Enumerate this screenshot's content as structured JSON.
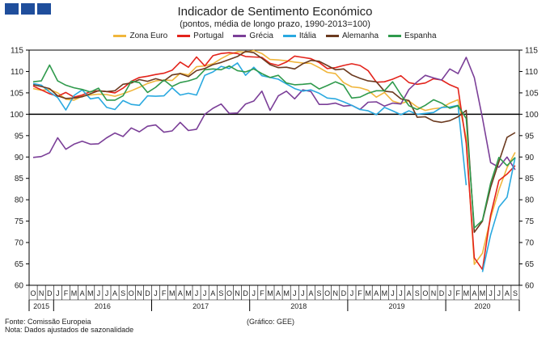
{
  "chart_data": {
    "type": "line",
    "title": "Indicador de Sentimento Económico",
    "subtitle": "(pontos, média de longo prazo, 1990-2013=100)",
    "ylim": [
      60,
      115
    ],
    "yticks": [
      60,
      65,
      70,
      75,
      80,
      85,
      90,
      95,
      100,
      105,
      110,
      115
    ],
    "reference_line": 100,
    "grid": false,
    "legend_position": "top",
    "x": [
      "2015-10",
      "2015-11",
      "2015-12",
      "2016-01",
      "2016-02",
      "2016-03",
      "2016-04",
      "2016-05",
      "2016-06",
      "2016-07",
      "2016-08",
      "2016-09",
      "2016-10",
      "2016-11",
      "2016-12",
      "2017-01",
      "2017-02",
      "2017-03",
      "2017-04",
      "2017-05",
      "2017-06",
      "2017-07",
      "2017-08",
      "2017-09",
      "2017-10",
      "2017-11",
      "2017-12",
      "2018-01",
      "2018-02",
      "2018-03",
      "2018-04",
      "2018-05",
      "2018-06",
      "2018-07",
      "2018-08",
      "2018-09",
      "2018-10",
      "2018-11",
      "2018-12",
      "2019-01",
      "2019-02",
      "2019-03",
      "2019-04",
      "2019-05",
      "2019-06",
      "2019-07",
      "2019-08",
      "2019-09",
      "2019-10",
      "2019-11",
      "2019-12",
      "2020-01",
      "2020-02",
      "2020-03",
      "2020-04",
      "2020-05",
      "2020-06",
      "2020-07",
      "2020-08",
      "2020-09"
    ],
    "month_labels": [
      "O",
      "N",
      "D",
      "J",
      "F",
      "M",
      "A",
      "M",
      "J",
      "J",
      "A",
      "S",
      "O",
      "N",
      "D",
      "J",
      "F",
      "M",
      "A",
      "M",
      "J",
      "J",
      "A",
      "S",
      "O",
      "N",
      "D",
      "J",
      "F",
      "M",
      "A",
      "M",
      "J",
      "J",
      "A",
      "S",
      "O",
      "N",
      "D",
      "J",
      "F",
      "M",
      "A",
      "M",
      "J",
      "J",
      "A",
      "S",
      "O",
      "N",
      "D",
      "J",
      "F",
      "M",
      "A",
      "M",
      "J",
      "J",
      "A",
      "S"
    ],
    "year_labels": [
      {
        "label": "2015",
        "from": 0,
        "to": 2
      },
      {
        "label": "2016",
        "from": 3,
        "to": 14
      },
      {
        "label": "2017",
        "from": 15,
        "to": 26
      },
      {
        "label": "2018",
        "from": 27,
        "to": 38
      },
      {
        "label": "2019",
        "from": 39,
        "to": 50
      },
      {
        "label": "2020",
        "from": 51,
        "to": 59
      }
    ],
    "series": [
      {
        "name": "Zona Euro",
        "color": "#f0b63c",
        "values": [
          106.0,
          105.6,
          105.8,
          105.0,
          103.5,
          103.3,
          104.2,
          104.5,
          104.7,
          104.6,
          104.2,
          104.8,
          105.5,
          106.3,
          107.2,
          107.8,
          108.0,
          107.9,
          109.6,
          109.2,
          111.1,
          111.3,
          111.8,
          113.0,
          114.0,
          114.6,
          114.5,
          114.9,
          114.2,
          112.8,
          112.7,
          112.5,
          112.2,
          112.0,
          111.9,
          110.9,
          109.8,
          109.5,
          107.4,
          106.4,
          106.2,
          105.6,
          104.0,
          105.1,
          103.1,
          102.5,
          103.1,
          101.7,
          100.9,
          101.3,
          101.5,
          102.6,
          103.4,
          94.5,
          64.9,
          67.5,
          75.7,
          82.3,
          87.5,
          91.1
        ]
      },
      {
        "name": "Portugal",
        "color": "#e3231b",
        "values": [
          106.6,
          105.7,
          104.8,
          104.2,
          105.1,
          104.0,
          104.5,
          105.3,
          105.5,
          105.3,
          105.0,
          106.1,
          107.7,
          108.6,
          108.9,
          109.3,
          109.6,
          110.3,
          112.2,
          111.0,
          113.4,
          111.3,
          113.7,
          114.2,
          114.4,
          114.2,
          113.5,
          113.4,
          113.3,
          111.9,
          111.4,
          112.2,
          113.6,
          113.3,
          113.0,
          112.1,
          110.7,
          110.9,
          111.4,
          111.8,
          111.4,
          110.2,
          107.5,
          107.6,
          108.2,
          109.0,
          107.4,
          107.0,
          107.3,
          108.3,
          108.0,
          106.9,
          106.1,
          93.2,
          66.4,
          63.7,
          76.4,
          84.5,
          86.0,
          88.0
        ]
      },
      {
        "name": "Grécia",
        "color": "#7b3f98",
        "values": [
          89.9,
          90.1,
          91.0,
          94.5,
          91.8,
          93.0,
          93.7,
          93.0,
          93.1,
          94.5,
          95.6,
          94.8,
          96.8,
          95.9,
          97.2,
          97.5,
          95.8,
          96.1,
          98.1,
          96.2,
          96.5,
          100.0,
          101.4,
          102.4,
          100.2,
          100.3,
          102.4,
          103.1,
          105.4,
          100.9,
          104.3,
          105.4,
          103.6,
          105.7,
          105.3,
          102.3,
          102.3,
          102.6,
          101.9,
          102.1,
          101.1,
          102.8,
          102.9,
          101.9,
          102.6,
          102.4,
          105.8,
          107.6,
          109.1,
          108.5,
          108.0,
          110.6,
          109.5,
          113.3,
          108.6,
          99.1,
          88.7,
          87.6,
          90.0,
          87.0
        ]
      },
      {
        "name": "Itália",
        "color": "#2aa9e0",
        "values": [
          107.2,
          106.8,
          105.2,
          103.9,
          101.0,
          104.4,
          105.7,
          103.6,
          103.9,
          101.6,
          101.1,
          103.2,
          102.3,
          102.1,
          104.3,
          104.2,
          104.3,
          106.2,
          104.5,
          104.9,
          104.5,
          109.1,
          109.9,
          111.2,
          110.7,
          112.0,
          109.1,
          111.0,
          109.0,
          108.6,
          108.2,
          107.1,
          106.0,
          105.4,
          105.7,
          104.9,
          103.8,
          103.6,
          102.9,
          102.1,
          101.1,
          100.8,
          99.9,
          101.6,
          100.8,
          99.9,
          100.8,
          100.0,
          100.2,
          100.4,
          101.6,
          101.7,
          102.1,
          83.4,
          null,
          63.1,
          71.8,
          78.3,
          80.6,
          89.9
        ]
      },
      {
        "name": "Alemanha",
        "color": "#6b3a1f",
        "values": [
          106.9,
          106.5,
          106.0,
          104.3,
          103.7,
          103.8,
          104.1,
          104.8,
          105.5,
          105.3,
          105.5,
          107.0,
          107.3,
          108.1,
          107.7,
          108.3,
          107.8,
          109.2,
          109.5,
          108.8,
          110.2,
          110.7,
          111.6,
          112.1,
          112.8,
          113.5,
          114.7,
          114.4,
          113.1,
          111.6,
          110.9,
          111.0,
          110.6,
          111.8,
          112.6,
          112.4,
          111.4,
          110.4,
          110.6,
          109.2,
          108.4,
          107.8,
          107.6,
          105.4,
          105.2,
          103.6,
          103.2,
          99.3,
          99.4,
          98.4,
          98.1,
          98.5,
          99.4,
          100.9,
          72.4,
          75.0,
          82.9,
          88.9,
          94.6,
          95.7
        ]
      },
      {
        "name": "Espanha",
        "color": "#2f9a4c",
        "values": [
          107.6,
          107.8,
          111.5,
          107.8,
          106.8,
          106.2,
          105.8,
          105.2,
          106.1,
          103.3,
          103.3,
          104.3,
          107.7,
          107.4,
          105.1,
          106.3,
          108.0,
          106.5,
          107.4,
          107.8,
          108.4,
          110.4,
          110.6,
          110.4,
          111.3,
          110.2,
          109.9,
          110.6,
          109.5,
          108.6,
          109.1,
          107.3,
          106.9,
          107.0,
          107.2,
          105.9,
          106.7,
          107.6,
          106.8,
          103.8,
          104.0,
          104.9,
          105.5,
          105.5,
          107.6,
          104.6,
          102.0,
          101.1,
          102.1,
          103.4,
          102.6,
          101.4,
          102.0,
          99.0,
          73.4,
          75.2,
          83.9,
          89.9,
          88.0,
          89.9
        ]
      }
    ]
  },
  "footer": {
    "source": "Fonte: Comissão Europeia",
    "note": "Nota: Dados ajustados de sazonalidade",
    "credit": "(Gráfico: GEE)"
  }
}
